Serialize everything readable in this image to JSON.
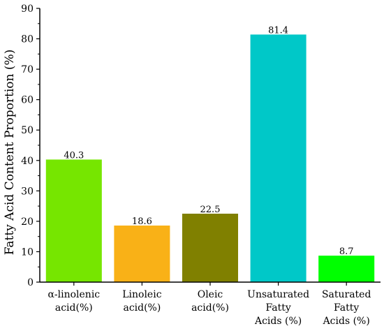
{
  "chart_data": {
    "type": "bar",
    "ylabel": "Fatty Acid Content Proportion (%)",
    "xlabel": "",
    "ylim": [
      0,
      90
    ],
    "yticks": [
      0,
      10,
      20,
      30,
      40,
      50,
      60,
      70,
      80,
      90
    ],
    "grid": false,
    "categories": [
      [
        "α-linolenic",
        "acid(%)"
      ],
      [
        "Linoleic",
        "acid(%)"
      ],
      [
        "Oleic",
        "acid(%)"
      ],
      [
        "Unsaturated",
        "Fatty",
        "Acids (%)"
      ],
      [
        "Saturated",
        "Fatty",
        "Acids (%)"
      ]
    ],
    "values": [
      40.3,
      18.6,
      22.5,
      81.4,
      8.7
    ],
    "value_labels": [
      "40.3",
      "18.6",
      "22.5",
      "81.4",
      "8.7"
    ],
    "bar_colors": [
      "#76e600",
      "#f9b117",
      "#808000",
      "#00c8c8",
      "#00ff00"
    ]
  }
}
